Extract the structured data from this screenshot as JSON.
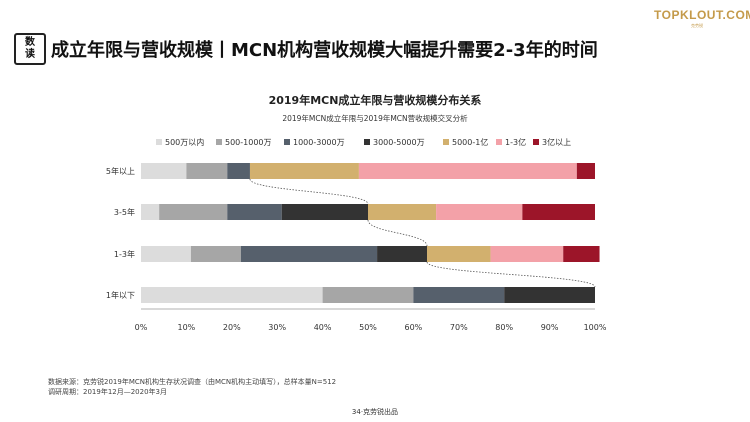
{
  "header": {
    "badge_line1": "数",
    "badge_line2": "读",
    "headline": "成立年限与营收规模丨MCN机构营收规模大幅提升需要2-3年的时间",
    "logo_main": "TOPKLOUT.COM",
    "logo_sub": "克劳锐"
  },
  "chart_data": {
    "type": "bar",
    "orientation": "horizontal",
    "stacked": true,
    "percent": true,
    "title": "2019年MCN成立年限与营收规模分布关系",
    "subtitle": "2019年MCN成立年限与2019年MCN营收规模交叉分析",
    "categories": [
      "5年以上",
      "3-5年",
      "1-3年",
      "1年以下"
    ],
    "series": [
      {
        "name": "500万以内",
        "color": "#dcdcdc",
        "values": [
          10,
          4,
          11,
          40
        ]
      },
      {
        "name": "500-1000万",
        "color": "#a6a6a6",
        "values": [
          9,
          15,
          11,
          20
        ]
      },
      {
        "name": "1000-3000万",
        "color": "#56606c",
        "values": [
          5,
          12,
          30,
          20
        ]
      },
      {
        "name": "3000-5000万",
        "color": "#333333",
        "values": [
          0,
          19,
          11,
          20
        ]
      },
      {
        "name": "5000-1亿",
        "color": "#d2b06e",
        "values": [
          24,
          15,
          14,
          0
        ]
      },
      {
        "name": "1-3亿",
        "color": "#f3a1a8",
        "values": [
          48,
          19,
          16,
          0
        ]
      },
      {
        "name": "3亿以上",
        "color": "#9c1529",
        "values": [
          4,
          16,
          8,
          0
        ]
      }
    ],
    "xlim": [
      0,
      100
    ],
    "xticks": [
      "0%",
      "10%",
      "20%",
      "30%",
      "40%",
      "50%",
      "60%",
      "70%",
      "80%",
      "90%",
      "100%"
    ],
    "legend_position": "top",
    "grid": false
  },
  "notes": {
    "source": "数据来源：克劳锐2019年MCN机构生存状况调查（由MCN机构主动填写），总样本量N=512",
    "period": "调研周期：2019年12月—2020年3月"
  },
  "footer": {
    "page": "34·克劳锐出品"
  }
}
